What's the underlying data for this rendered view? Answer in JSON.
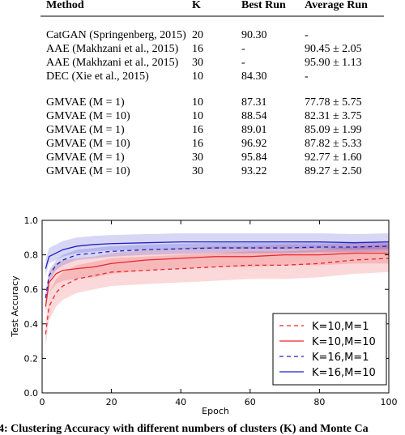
{
  "table": {
    "header": [
      "Method",
      "K",
      "Best Run",
      "Average Run"
    ],
    "groups": [
      {
        "rows": [
          [
            "CatGAN (Springenberg, 2015)",
            "20",
            "90.30",
            "-"
          ],
          [
            "AAE (Makhzani et al., 2015)",
            "16",
            "-",
            "90.45 ± 2.05"
          ],
          [
            "AAE (Makhzani et al., 2015)",
            "30",
            "-",
            "95.90 ± 1.13"
          ],
          [
            "DEC (Xie et al., 2015)",
            "10",
            "84.30",
            "-"
          ]
        ]
      },
      {
        "rows": [
          [
            "GMVAE (M = 1)",
            "10",
            "87.31",
            "77.78 ± 5.75"
          ],
          [
            "GMVAE (M = 10)",
            "10",
            "88.54",
            "82.31 ± 3.75"
          ],
          [
            "GMVAE (M = 1)",
            "16",
            "89.01",
            "85.09 ± 1.99"
          ],
          [
            "GMVAE (M = 10)",
            "16",
            "96.92",
            "87.82 ± 5.33"
          ],
          [
            "GMVAE (M = 1)",
            "30",
            "95.84",
            "92.77 ± 1.60"
          ],
          [
            "GMVAE (M = 10)",
            "30",
            "93.22",
            "89.27 ± 2.50"
          ]
        ]
      }
    ]
  },
  "chart_data": {
    "type": "line",
    "x_label": "Epoch",
    "y_label": "Test Accuracy",
    "x": [
      1,
      2,
      4,
      6,
      10,
      15,
      20,
      30,
      40,
      50,
      60,
      70,
      80,
      90,
      100
    ],
    "xlim": [
      0,
      100
    ],
    "xticks": [
      0,
      20,
      40,
      60,
      80,
      100
    ],
    "ylim": [
      0,
      1
    ],
    "yticks": [
      {
        "value": 0,
        "label": "0.0"
      },
      {
        "value": 0.2,
        "label": "0.2"
      },
      {
        "value": 0.4,
        "label": "0.4"
      },
      {
        "value": 0.6,
        "label": "0.6"
      },
      {
        "value": 0.8,
        "label": "0.8"
      },
      {
        "value": 1,
        "label": "1.0"
      }
    ],
    "legend": "lower right",
    "series": [
      {
        "name": "K=10,M=1",
        "color": "#e8262b",
        "dashed": true,
        "values": [
          0.34,
          0.5,
          0.58,
          0.62,
          0.66,
          0.68,
          0.7,
          0.71,
          0.72,
          0.73,
          0.74,
          0.74,
          0.75,
          0.77,
          0.78
        ],
        "lower": [
          0.27,
          0.42,
          0.5,
          0.54,
          0.58,
          0.6,
          0.62,
          0.63,
          0.64,
          0.65,
          0.66,
          0.66,
          0.67,
          0.69,
          0.7
        ],
        "upper": [
          0.41,
          0.58,
          0.66,
          0.7,
          0.74,
          0.76,
          0.78,
          0.79,
          0.8,
          0.81,
          0.82,
          0.82,
          0.83,
          0.85,
          0.86
        ]
      },
      {
        "name": "K=10,M=10",
        "color": "#e8262b",
        "dashed": false,
        "values": [
          0.5,
          0.64,
          0.69,
          0.71,
          0.72,
          0.73,
          0.75,
          0.77,
          0.78,
          0.79,
          0.79,
          0.8,
          0.8,
          0.81,
          0.81
        ],
        "lower": [
          0.44,
          0.58,
          0.63,
          0.65,
          0.66,
          0.67,
          0.69,
          0.71,
          0.72,
          0.73,
          0.73,
          0.74,
          0.74,
          0.75,
          0.75
        ],
        "upper": [
          0.56,
          0.7,
          0.75,
          0.77,
          0.78,
          0.79,
          0.81,
          0.83,
          0.84,
          0.85,
          0.85,
          0.86,
          0.86,
          0.87,
          0.87
        ]
      },
      {
        "name": "K=16,M=1",
        "color": "#2020c8",
        "dashed": true,
        "values": [
          0.55,
          0.68,
          0.74,
          0.77,
          0.8,
          0.81,
          0.82,
          0.83,
          0.835,
          0.84,
          0.84,
          0.84,
          0.845,
          0.845,
          0.85
        ],
        "lower": [
          0.52,
          0.65,
          0.71,
          0.74,
          0.77,
          0.78,
          0.79,
          0.8,
          0.805,
          0.81,
          0.81,
          0.81,
          0.815,
          0.815,
          0.82
        ],
        "upper": [
          0.58,
          0.71,
          0.77,
          0.8,
          0.83,
          0.84,
          0.85,
          0.86,
          0.865,
          0.87,
          0.87,
          0.87,
          0.875,
          0.875,
          0.88
        ]
      },
      {
        "name": "K=16,M=10",
        "color": "#2020c8",
        "dashed": false,
        "values": [
          0.72,
          0.79,
          0.81,
          0.83,
          0.85,
          0.86,
          0.865,
          0.87,
          0.875,
          0.875,
          0.875,
          0.875,
          0.875,
          0.87,
          0.875
        ],
        "lower": [
          0.68,
          0.75,
          0.77,
          0.79,
          0.81,
          0.82,
          0.825,
          0.83,
          0.835,
          0.835,
          0.835,
          0.835,
          0.835,
          0.83,
          0.835
        ],
        "upper": [
          0.77,
          0.84,
          0.86,
          0.88,
          0.9,
          0.91,
          0.915,
          0.92,
          0.925,
          0.925,
          0.925,
          0.925,
          0.925,
          0.92,
          0.925
        ]
      }
    ]
  },
  "caption": "4: Clustering Accuracy with different numbers of clusters (K) and Monte Ca"
}
